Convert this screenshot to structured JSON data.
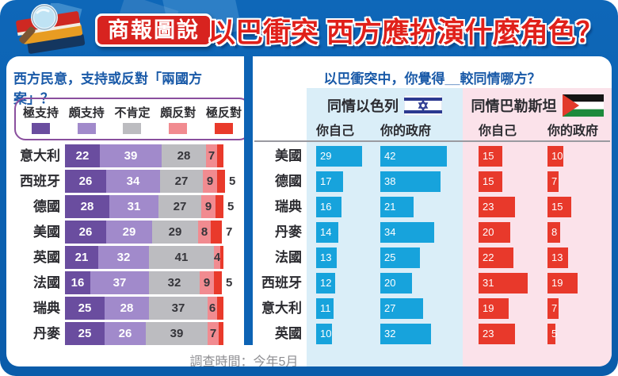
{
  "header": {
    "badge": "商報圖說",
    "title": "以巴衝突 西方應扮演什麼角色？"
  },
  "survey_note": "調查時間：今年5月",
  "colors": {
    "frame_blue": "#0d63b4",
    "title_red": "#e0201a",
    "badge_red": "#d8231f",
    "chart_title_blue": "#1a5aa8",
    "strong_support_purple": "#6a4d9f",
    "somewhat_support_purple": "#a18acb",
    "unsure_gray": "#bcbcc0",
    "somewhat_oppose_pink": "#f18b90",
    "strong_oppose_red": "#e93a2b",
    "israel_bar_blue": "#17a3dc",
    "palestine_bar_red": "#e8392b",
    "israel_panel_bg": "#daeef8",
    "palestine_panel_bg": "#fbe2ea"
  },
  "chart_data": [
    {
      "type": "bar",
      "subtype": "horizontal-stacked",
      "title": "西方民意，支持或反對「兩國方案」？",
      "unit": "percent",
      "xlim": [
        0,
        100
      ],
      "legend_position": "top",
      "legend": [
        {
          "label": "極支持",
          "color": "#6a4d9f"
        },
        {
          "label": "頗支持",
          "color": "#a18acb"
        },
        {
          "label": "不肯定",
          "color": "#bcbcc0"
        },
        {
          "label": "頗反對",
          "color": "#f18b90"
        },
        {
          "label": "極反對",
          "color": "#e93a2b"
        }
      ],
      "rows": [
        {
          "country": "意大利",
          "values": [
            22,
            39,
            28,
            7,
            4
          ],
          "labels": [
            "22",
            "39",
            "28",
            "7",
            ""
          ],
          "outside_label": ""
        },
        {
          "country": "西班牙",
          "values": [
            26,
            34,
            27,
            9,
            5
          ],
          "labels": [
            "26",
            "34",
            "27",
            "9",
            ""
          ],
          "outside_label": "5"
        },
        {
          "country": "德國",
          "values": [
            28,
            31,
            27,
            9,
            5
          ],
          "labels": [
            "28",
            "31",
            "27",
            "9",
            ""
          ],
          "outside_label": "5"
        },
        {
          "country": "美國",
          "values": [
            26,
            29,
            29,
            8,
            7
          ],
          "labels": [
            "26",
            "29",
            "29",
            "8",
            ""
          ],
          "outside_label": "7"
        },
        {
          "country": "英國",
          "values": [
            21,
            32,
            41,
            4,
            2
          ],
          "labels": [
            "21",
            "32",
            "41",
            "4",
            ""
          ],
          "outside_label": ""
        },
        {
          "country": "法國",
          "values": [
            16,
            37,
            32,
            9,
            5
          ],
          "labels": [
            "16",
            "37",
            "32",
            "9",
            ""
          ],
          "outside_label": "5"
        },
        {
          "country": "瑞典",
          "values": [
            25,
            28,
            37,
            6,
            4
          ],
          "labels": [
            "25",
            "28",
            "37",
            "6",
            ""
          ],
          "outside_label": ""
        },
        {
          "country": "丹麥",
          "values": [
            25,
            26,
            39,
            7,
            3
          ],
          "labels": [
            "25",
            "26",
            "39",
            "7",
            ""
          ],
          "outside_label": ""
        }
      ]
    },
    {
      "type": "bar",
      "subtype": "horizontal-grouped",
      "title": "以巴衝突中，你覺得__較同情哪方？",
      "unit": "percent",
      "groups": [
        {
          "label": "同情以色列",
          "flag": "israel-flag",
          "columns": [
            "你自己",
            "你的政府"
          ],
          "bar_color": "#17a3dc",
          "panel_color": "#daeef8"
        },
        {
          "label": "同情巴勒斯坦",
          "flag": "palestine-flag",
          "columns": [
            "你自己",
            "你的政府"
          ],
          "bar_color": "#e8392b",
          "panel_color": "#fbe2ea"
        }
      ],
      "rows": [
        {
          "country": "美國",
          "israel_self": 29,
          "israel_govt": 42,
          "palestine_self": 15,
          "palestine_govt": 10
        },
        {
          "country": "德國",
          "israel_self": 17,
          "israel_govt": 38,
          "palestine_self": 15,
          "palestine_govt": 7
        },
        {
          "country": "瑞典",
          "israel_self": 16,
          "israel_govt": 21,
          "palestine_self": 23,
          "palestine_govt": 15
        },
        {
          "country": "丹麥",
          "israel_self": 14,
          "israel_govt": 34,
          "palestine_self": 20,
          "palestine_govt": 8
        },
        {
          "country": "法國",
          "israel_self": 13,
          "israel_govt": 25,
          "palestine_self": 22,
          "palestine_govt": 13
        },
        {
          "country": "西班牙",
          "israel_self": 12,
          "israel_govt": 20,
          "palestine_self": 31,
          "palestine_govt": 19
        },
        {
          "country": "意大利",
          "israel_self": 11,
          "israel_govt": 27,
          "palestine_self": 19,
          "palestine_govt": 7
        },
        {
          "country": "英國",
          "israel_self": 10,
          "israel_govt": 32,
          "palestine_self": 23,
          "palestine_govt": 5
        }
      ]
    }
  ]
}
